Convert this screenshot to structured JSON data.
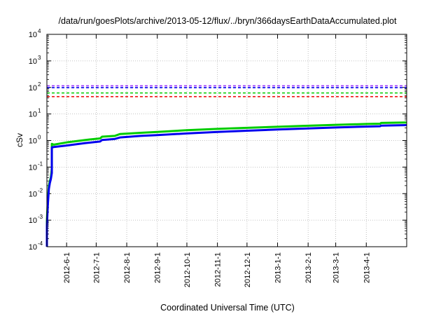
{
  "chart_data": {
    "type": "line",
    "title": "/data/run/goesPlots/archive/2013-05-12/flux/../bryn/366daysEarthDataAccumulated.plot",
    "xlabel": "Coordinated Universal Time (UTC)",
    "ylabel": "cSv",
    "yscale": "log",
    "ylim": [
      0.0001,
      10000
    ],
    "xlim": [
      "2012-05-12",
      "2013-05-12"
    ],
    "y_tick_labels": [
      {
        "base": "10",
        "exp": "-4"
      },
      {
        "base": "10",
        "exp": "-3"
      },
      {
        "base": "10",
        "exp": "-2"
      },
      {
        "base": "10",
        "exp": "-1"
      },
      {
        "base": "10",
        "exp": "0"
      },
      {
        "base": "10",
        "exp": "1"
      },
      {
        "base": "10",
        "exp": "2"
      },
      {
        "base": "10",
        "exp": "3"
      },
      {
        "base": "10",
        "exp": "4"
      }
    ],
    "x_tick_labels": [
      "2012-6-1",
      "2012-7-1",
      "2012-8-1",
      "2012-9-1",
      "2012-10-1",
      "2012-11-1",
      "2012-12-1",
      "2013-1-1",
      "2013-2-1",
      "2013-3-1",
      "2013-4-1"
    ],
    "x_tick_dates": [
      "2012-06-01",
      "2012-07-01",
      "2012-08-01",
      "2012-09-01",
      "2012-10-01",
      "2012-11-01",
      "2012-12-01",
      "2013-01-01",
      "2013-02-01",
      "2013-03-01",
      "2013-04-01"
    ],
    "grid": true,
    "series": [
      {
        "color": "#00cc00",
        "style": "solid",
        "points": [
          [
            "2012-05-12",
            0.0001
          ],
          [
            "2012-05-12",
            0.001
          ],
          [
            "2012-05-13",
            0.006
          ],
          [
            "2012-05-14",
            0.02
          ],
          [
            "2012-05-15",
            0.03
          ],
          [
            "2012-05-16",
            0.04
          ],
          [
            "2012-05-17",
            0.09
          ],
          [
            "2012-05-17",
            0.75
          ],
          [
            "2012-05-19",
            0.7
          ],
          [
            "2012-06-01",
            0.85
          ],
          [
            "2012-06-20",
            1.05
          ],
          [
            "2012-07-05",
            1.2
          ],
          [
            "2012-07-07",
            1.4
          ],
          [
            "2012-07-20",
            1.5
          ],
          [
            "2012-07-25",
            1.75
          ],
          [
            "2012-08-15",
            1.95
          ],
          [
            "2012-09-01",
            2.1
          ],
          [
            "2012-10-01",
            2.45
          ],
          [
            "2012-11-01",
            2.75
          ],
          [
            "2012-12-01",
            3.0
          ],
          [
            "2013-01-01",
            3.3
          ],
          [
            "2013-02-01",
            3.6
          ],
          [
            "2013-03-01",
            3.9
          ],
          [
            "2013-04-01",
            4.2
          ],
          [
            "2013-04-15",
            4.3
          ],
          [
            "2013-04-16",
            4.6
          ],
          [
            "2013-05-12",
            4.8
          ]
        ]
      },
      {
        "color": "#0000ee",
        "style": "solid",
        "points": [
          [
            "2012-05-12",
            0.0001
          ],
          [
            "2012-05-12",
            0.0006
          ],
          [
            "2012-05-13",
            0.004
          ],
          [
            "2012-05-14",
            0.015
          ],
          [
            "2012-05-15",
            0.025
          ],
          [
            "2012-05-16",
            0.035
          ],
          [
            "2012-05-17",
            0.06
          ],
          [
            "2012-05-17",
            0.55
          ],
          [
            "2012-05-19",
            0.57
          ],
          [
            "2012-06-01",
            0.65
          ],
          [
            "2012-06-20",
            0.8
          ],
          [
            "2012-07-05",
            0.92
          ],
          [
            "2012-07-07",
            1.05
          ],
          [
            "2012-07-20",
            1.15
          ],
          [
            "2012-07-25",
            1.3
          ],
          [
            "2012-08-15",
            1.5
          ],
          [
            "2012-09-01",
            1.6
          ],
          [
            "2012-10-01",
            1.85
          ],
          [
            "2012-11-01",
            2.1
          ],
          [
            "2012-12-01",
            2.35
          ],
          [
            "2013-01-01",
            2.6
          ],
          [
            "2013-02-01",
            2.85
          ],
          [
            "2013-03-01",
            3.1
          ],
          [
            "2013-04-01",
            3.35
          ],
          [
            "2013-04-15",
            3.45
          ],
          [
            "2013-04-16",
            3.65
          ],
          [
            "2013-05-12",
            3.8
          ]
        ]
      }
    ],
    "reference_lines": [
      {
        "color": "#9933ff",
        "style": "dashed",
        "value": 115
      },
      {
        "color": "#0000ee",
        "style": "dashed",
        "value": 98
      },
      {
        "color": "#00cc00",
        "style": "dashed",
        "value": 62
      },
      {
        "color": "#ee0000",
        "style": "dashed",
        "value": 45
      }
    ]
  }
}
